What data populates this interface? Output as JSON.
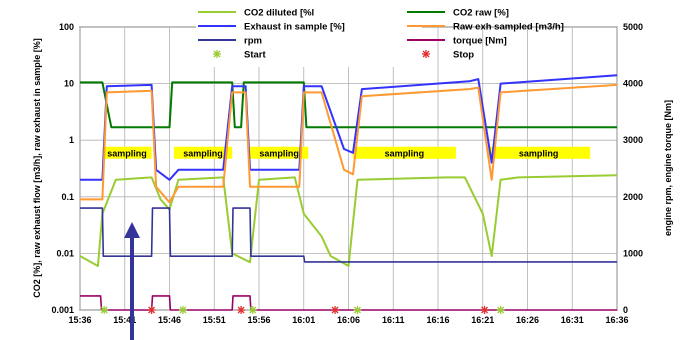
{
  "chart_data": {
    "type": "line",
    "title": "",
    "xlabel": "",
    "ylabel_left": "CO2 [%], raw exhaust flow [m3/h], raw exhaust in sample [%]",
    "ylabel_right": "engine rpm, engine torque [Nm]",
    "x_ticks": [
      "15:36",
      "15:41",
      "15:46",
      "15:51",
      "15:56",
      "16:01",
      "16:06",
      "16:11",
      "16:16",
      "16:21",
      "16:26",
      "16:31",
      "16:36"
    ],
    "y_left": {
      "scale": "log",
      "range": [
        0.001,
        100
      ],
      "ticks": [
        "0.001",
        "0.01",
        "0.1",
        "1",
        "10",
        "100"
      ]
    },
    "y_right": {
      "scale": "linear",
      "range": [
        0,
        5000
      ],
      "ticks": [
        "0",
        "1000",
        "2000",
        "3000",
        "4000",
        "5000"
      ]
    },
    "grid": true,
    "legend_position": "top-center",
    "legend": [
      {
        "label": "CO2 diluted [%l",
        "color": "#99cc33",
        "kind": "line"
      },
      {
        "label": "CO2 raw [%]",
        "color": "#007a00",
        "kind": "line"
      },
      {
        "label": "Exhaust in sample [%]",
        "color": "#3333ff",
        "kind": "line"
      },
      {
        "label": "Raw exh sampled [m3/h]",
        "color": "#ff9933",
        "kind": "line"
      },
      {
        "label": "rpm",
        "color": "#333399",
        "kind": "line"
      },
      {
        "label": "torque [Nm]",
        "color": "#990066",
        "kind": "line"
      },
      {
        "label": "Start",
        "color": "#99cc33",
        "kind": "marker"
      },
      {
        "label": "Stop",
        "color": "#e03030",
        "kind": "marker"
      }
    ],
    "sampling_label": "sampling",
    "sampling_periods": [
      [
        "15:38.5",
        "15:44"
      ],
      [
        "15:46.5",
        "15:53"
      ],
      [
        "15:55",
        "16:01.5"
      ],
      [
        "16:06.5",
        "16:18"
      ],
      [
        "16:21.5",
        "16:33"
      ]
    ],
    "series": [
      {
        "name": "CO2 raw [%]",
        "axis": "left",
        "x": [
          "15:36",
          "15:38.5",
          "15:39.5",
          "15:44",
          "15:46",
          "15:46.3",
          "15:53",
          "15:53.3",
          "15:54",
          "15:54.3",
          "16:01",
          "16:01.3",
          "16:36"
        ],
        "y": [
          10.5,
          10.5,
          1.7,
          1.7,
          1.7,
          10.5,
          10.5,
          1.7,
          1.7,
          10.5,
          10.5,
          1.7,
          1.7
        ]
      },
      {
        "name": "CO2 diluted [%l",
        "axis": "left",
        "x": [
          "15:36",
          "15:38",
          "15:38.5",
          "15:40",
          "15:44",
          "15:45",
          "15:46",
          "15:47",
          "15:52",
          "15:53",
          "15:55",
          "15:56",
          "16:00",
          "16:01",
          "16:03",
          "16:04",
          "16:06",
          "16:07",
          "16:17",
          "16:19",
          "16:21",
          "16:22",
          "16:23",
          "16:25",
          "16:36"
        ],
        "y": [
          0.009,
          0.006,
          0.05,
          0.2,
          0.22,
          0.09,
          0.06,
          0.2,
          0.22,
          0.01,
          0.007,
          0.2,
          0.22,
          0.05,
          0.02,
          0.009,
          0.006,
          0.2,
          0.22,
          0.22,
          0.05,
          0.009,
          0.2,
          0.22,
          0.24
        ]
      },
      {
        "name": "Exhaust in sample [%]",
        "axis": "left",
        "x": [
          "15:36",
          "15:38.5",
          "15:39",
          "15:44",
          "15:44.5",
          "15:46",
          "15:47",
          "15:52",
          "15:53",
          "15:54.5",
          "15:55",
          "16:00.5",
          "16:01",
          "16:03",
          "16:05.5",
          "16:06.5",
          "16:07.5",
          "16:19.5",
          "16:20.5",
          "16:22",
          "16:23",
          "16:36"
        ],
        "y": [
          0.2,
          0.2,
          9,
          9.5,
          0.3,
          0.2,
          0.3,
          0.3,
          9,
          9,
          0.3,
          0.3,
          9,
          9,
          0.7,
          0.6,
          8,
          11,
          12,
          0.4,
          10,
          14
        ]
      },
      {
        "name": "Raw exh sampled [m3/h]",
        "axis": "left",
        "x": [
          "15:36",
          "15:38.5",
          "15:39",
          "15:44",
          "15:44.5",
          "15:46",
          "15:47",
          "15:52",
          "15:53",
          "15:54.5",
          "15:55",
          "16:00.5",
          "16:01",
          "16:03",
          "16:05.5",
          "16:06.5",
          "16:07.5",
          "16:19.5",
          "16:20.5",
          "16:22",
          "16:23",
          "16:36"
        ],
        "y": [
          0.09,
          0.09,
          7,
          7.5,
          0.15,
          0.08,
          0.15,
          0.15,
          7,
          7,
          0.15,
          0.15,
          7,
          7,
          0.3,
          0.25,
          6,
          8,
          8.5,
          0.2,
          7,
          9.5
        ]
      },
      {
        "name": "rpm",
        "axis": "right",
        "x": [
          "15:36",
          "15:38.5",
          "15:38.6",
          "15:44",
          "15:44.1",
          "15:46",
          "15:46.1",
          "15:53",
          "15:53.1",
          "15:55",
          "15:55.1",
          "16:01",
          "16:01.1",
          "16:36"
        ],
        "y": [
          1800,
          1800,
          950,
          950,
          1800,
          1800,
          950,
          950,
          1800,
          1800,
          950,
          950,
          850,
          850
        ]
      },
      {
        "name": "torque [Nm]",
        "axis": "right",
        "x": [
          "15:36",
          "15:38.3",
          "15:38.4",
          "15:44",
          "15:44.1",
          "15:46",
          "15:46.1",
          "15:53",
          "15:53.1",
          "15:55",
          "15:55.1",
          "16:01",
          "16:01.1",
          "16:36"
        ],
        "y": [
          250,
          250,
          0,
          0,
          250,
          250,
          0,
          0,
          250,
          250,
          0,
          0,
          0,
          0
        ]
      }
    ],
    "markers": {
      "start": [
        "15:38.7",
        "15:47.5",
        "15:55.3",
        "16:07",
        "16:23"
      ],
      "stop": [
        "15:44",
        "15:54",
        "16:04.5",
        "16:21.2"
      ]
    }
  }
}
